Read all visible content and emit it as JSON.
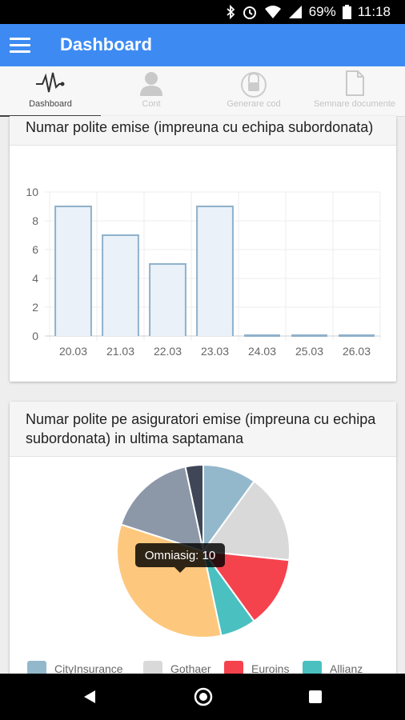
{
  "status_bar": {
    "battery": "69%",
    "time": "11:18"
  },
  "app_bar": {
    "title": "Dashboard"
  },
  "tabs": [
    {
      "label": "Dashboard",
      "icon": "pulse-icon",
      "active": true
    },
    {
      "label": "Cont",
      "icon": "user-icon",
      "active": false
    },
    {
      "label": "Generare cod",
      "icon": "lock-icon",
      "active": false
    },
    {
      "label": "Semnare documente",
      "icon": "document-icon",
      "active": false
    }
  ],
  "card1": {
    "title": "Numar polite emise (impreuna cu echipa subordonata)"
  },
  "card2": {
    "title": "Numar polite pe asiguratori emise (impreuna cu echipa subordonata) in ultima saptamana"
  },
  "chart_data": [
    {
      "type": "bar",
      "categories": [
        "20.03",
        "21.03",
        "22.03",
        "23.03",
        "24.03",
        "25.03",
        "26.03"
      ],
      "values": [
        9,
        7,
        5,
        9,
        0,
        0,
        0
      ],
      "ylim": [
        0,
        10
      ],
      "yticks": [
        0,
        2,
        4,
        6,
        8,
        10
      ],
      "bar_fill": "#eaf1f8",
      "bar_stroke": "#8fb1cb",
      "grid": true
    },
    {
      "type": "pie",
      "slices": [
        {
          "label": "CityInsurance",
          "value": 3,
          "color": "#94b8cb"
        },
        {
          "label": "Gothaer",
          "value": 5,
          "color": "#d9d9d9"
        },
        {
          "label": "Euroins",
          "value": 4,
          "color": "#f5434e"
        },
        {
          "label": "Allianz",
          "value": 2,
          "color": "#4bc0c0"
        },
        {
          "label": "Omniasig",
          "value": 10,
          "color": "#fdc87d"
        },
        {
          "label": "",
          "value": 5,
          "color": "#8c97a8"
        },
        {
          "label": "",
          "value": 1,
          "color": "#3f4657"
        }
      ],
      "tooltip": "Omniasig: 10",
      "legend_position": "bottom"
    }
  ]
}
